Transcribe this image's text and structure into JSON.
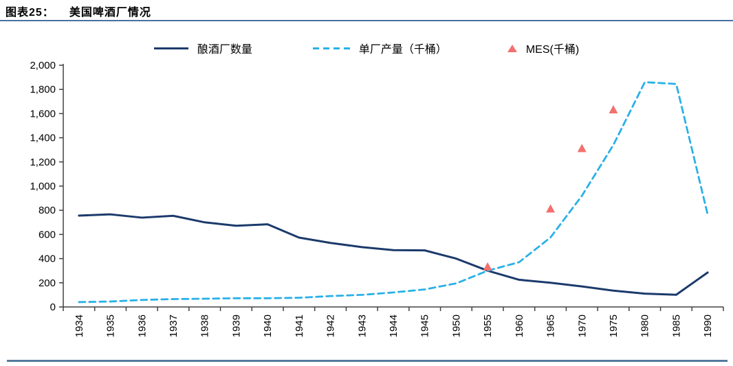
{
  "figure": {
    "label": "图表25：",
    "title": "美国啤酒厂情况"
  },
  "colors": {
    "rule_top": "#4670a0",
    "rule_bottom": "#55789e",
    "axis": "#404040",
    "breweries_line": "#1b3a6b",
    "output_line": "#29b0e8",
    "mes_marker": "#f2706e"
  },
  "chart_data": {
    "type": "line",
    "title": "美国啤酒厂情况",
    "categories": [
      "1934",
      "1935",
      "1936",
      "1937",
      "1938",
      "1939",
      "1940",
      "1941",
      "1942",
      "1943",
      "1944",
      "1945",
      "1950",
      "1955",
      "1960",
      "1965",
      "1970",
      "1975",
      "1980",
      "1985",
      "1990"
    ],
    "series": [
      {
        "name": "酿酒厂数量",
        "type": "line",
        "line_style": "solid",
        "color": "#1b3a6b",
        "values": [
          756,
          766,
          739,
          754,
          700,
          672,
          684,
          574,
          530,
          495,
          470,
          468,
          400,
          300,
          225,
          200,
          170,
          135,
          110,
          101,
          285
        ]
      },
      {
        "name": "单厂产量（千桶）",
        "type": "line",
        "line_style": "dashed",
        "color": "#29b0e8",
        "values": [
          40,
          45,
          58,
          65,
          68,
          72,
          72,
          76,
          90,
          100,
          120,
          145,
          195,
          300,
          370,
          575,
          920,
          1340,
          1860,
          1845,
          765
        ]
      },
      {
        "name": "MES(千桶)",
        "type": "scatter",
        "marker": "triangle",
        "color": "#f2706e",
        "points": [
          {
            "x": "1955",
            "y": 330
          },
          {
            "x": "1965",
            "y": 810
          },
          {
            "x": "1970",
            "y": 1310
          },
          {
            "x": "1975",
            "y": 1630
          }
        ]
      }
    ],
    "ylim": [
      0,
      2000
    ],
    "ytick_step": 200,
    "ytick_format": "thousands-comma",
    "xlabel_rotation": -90,
    "grid": false,
    "legend_position": "top"
  }
}
